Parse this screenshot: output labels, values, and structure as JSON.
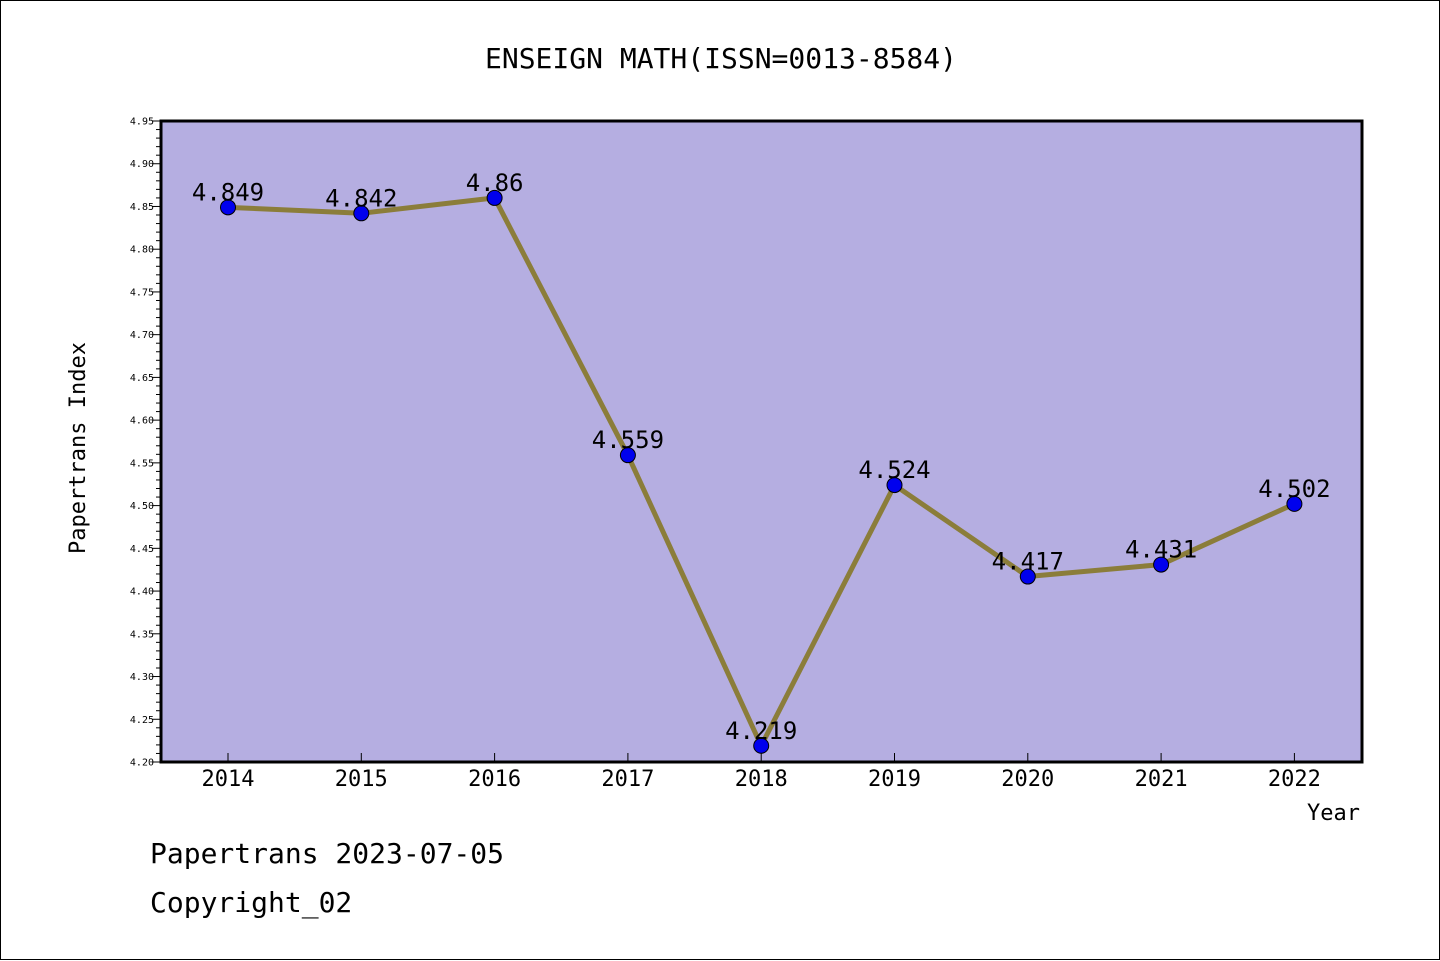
{
  "chart_data": {
    "type": "line",
    "title": "ENSEIGN MATH(ISSN=0013-8584)",
    "xlabel": "Year",
    "ylabel": "Papertrans Index",
    "categories": [
      "2014",
      "2015",
      "2016",
      "2017",
      "2018",
      "2019",
      "2020",
      "2021",
      "2022"
    ],
    "series": [
      {
        "values": [
          4.849,
          4.842,
          4.86,
          4.559,
          4.219,
          4.524,
          4.417,
          4.431,
          4.502
        ]
      }
    ],
    "data_labels": [
      "4.849",
      "4.842",
      "4.86",
      "4.559",
      "4.219",
      "4.524",
      "4.417",
      "4.431",
      "4.502"
    ],
    "ylim": [
      4.2,
      4.95
    ],
    "yticks": [
      "4.20",
      "4.25",
      "4.30",
      "4.35",
      "4.40",
      "4.45",
      "4.50",
      "4.55",
      "4.60",
      "4.65",
      "4.70",
      "4.75",
      "4.80",
      "4.85",
      "4.90",
      "4.95"
    ],
    "grid": false,
    "colors": {
      "plot_bg": "#b5aee1",
      "line": "#8b7d3a",
      "marker": "#0000ee"
    }
  },
  "footer": {
    "line1": "Papertrans 2023-07-05",
    "line2": "Copyright_02"
  }
}
